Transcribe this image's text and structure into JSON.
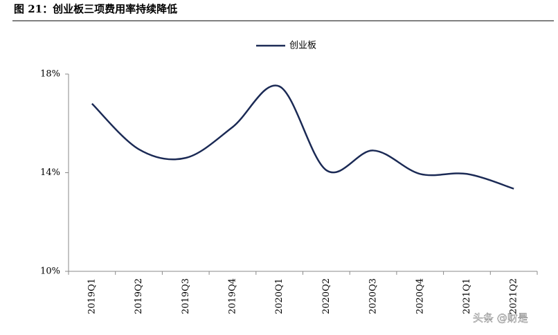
{
  "chart_data": {
    "type": "line",
    "title": "图 21：创业板三项费用率持续降低",
    "categories": [
      "2019Q1",
      "2019Q2",
      "2019Q3",
      "2019Q4",
      "2020Q1",
      "2020Q2",
      "2020Q3",
      "2020Q4",
      "2021Q1",
      "2021Q2"
    ],
    "series": [
      {
        "name": "创业板",
        "color": "#1b2a55",
        "values": [
          16.8,
          14.95,
          14.6,
          15.85,
          17.5,
          14.1,
          14.9,
          13.95,
          13.95,
          13.35
        ]
      }
    ],
    "ylim": [
      10,
      18
    ],
    "yticks": [
      {
        "value": 10,
        "label": "10%"
      },
      {
        "value": 14,
        "label": "14%"
      },
      {
        "value": 18,
        "label": "18%"
      }
    ],
    "legend": "top",
    "watermark": "头条 @财是"
  }
}
